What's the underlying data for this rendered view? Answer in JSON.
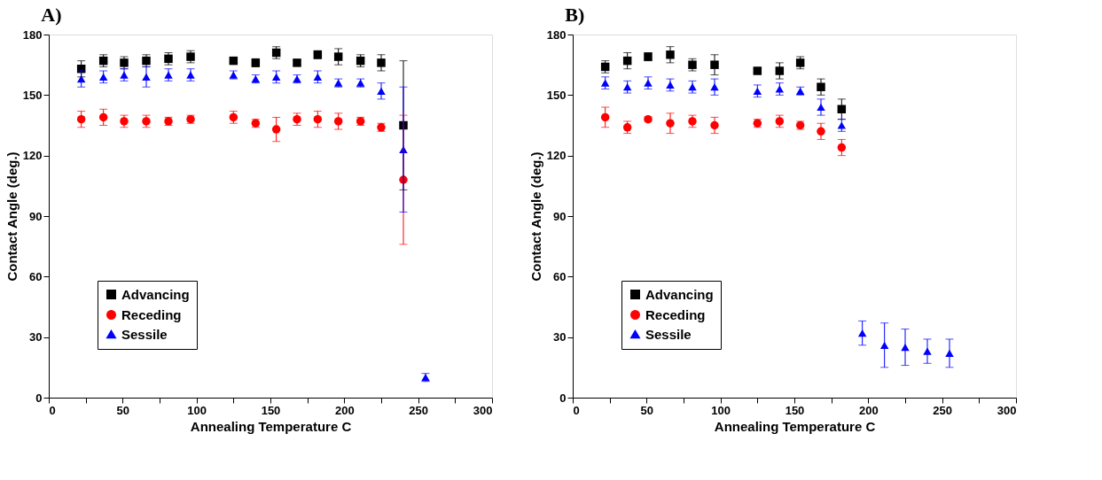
{
  "chart_data": [
    {
      "type": "scatter",
      "title": "A)",
      "xlabel": "Annealing Temperature C",
      "ylabel": "Contact Angle (deg.)",
      "xlim": [
        0,
        300
      ],
      "xticks": [
        0,
        {
          "value": 25,
          "label": null
        },
        50,
        {
          "value": 75,
          "label": null
        },
        100,
        {
          "value": 125,
          "label": null
        },
        150,
        {
          "value": 175,
          "label": null
        },
        200,
        {
          "value": 225,
          "label": null
        },
        250,
        {
          "value": 275,
          "label": null
        },
        300
      ],
      "ylim": [
        0,
        180
      ],
      "yticks": [
        0,
        30,
        60,
        90,
        120,
        150,
        180
      ],
      "grid": false,
      "legend": "bottom left",
      "series": [
        {
          "name": "Advancing",
          "color": "#000000",
          "marker": "square",
          "x": [
            22,
            37,
            51,
            66,
            81,
            96,
            125,
            140,
            154,
            168,
            182,
            196,
            211,
            225,
            240
          ],
          "values": [
            163,
            167,
            166,
            167,
            168,
            169,
            167,
            166,
            171,
            166,
            170,
            169,
            167,
            166,
            135
          ],
          "errors": [
            4,
            3,
            3,
            3,
            3,
            3,
            1,
            2,
            3,
            1,
            2,
            4,
            3,
            4,
            32
          ]
        },
        {
          "name": "Receding",
          "color": "#ff0000",
          "marker": "circle",
          "x": [
            22,
            37,
            51,
            66,
            81,
            96,
            125,
            140,
            154,
            168,
            182,
            196,
            211,
            225,
            240
          ],
          "values": [
            138,
            139,
            137,
            137,
            137,
            138,
            139,
            136,
            133,
            138,
            138,
            137,
            137,
            134,
            108
          ],
          "errors": [
            4,
            4,
            3,
            3,
            2,
            2,
            3,
            2,
            6,
            3,
            4,
            4,
            2,
            2,
            32
          ]
        },
        {
          "name": "Sessile",
          "color": "#0000ff",
          "marker": "triangle",
          "x": [
            22,
            37,
            51,
            66,
            81,
            96,
            125,
            140,
            154,
            168,
            182,
            196,
            211,
            225,
            240,
            255
          ],
          "values": [
            158,
            159,
            160,
            159,
            160,
            160,
            160,
            158,
            159,
            158,
            159,
            156,
            156,
            152,
            123,
            10
          ],
          "errors": [
            4,
            3,
            3,
            5,
            3,
            3,
            2,
            2,
            3,
            2,
            3,
            2,
            2,
            4,
            31,
            2
          ]
        }
      ]
    },
    {
      "type": "scatter",
      "title": "B)",
      "xlabel": "Annealing Temperature C",
      "ylabel": "Contact Angle (deg.)",
      "xlim": [
        0,
        300
      ],
      "xticks": [
        0,
        {
          "value": 25,
          "label": null
        },
        50,
        {
          "value": 75,
          "label": null
        },
        100,
        {
          "value": 125,
          "label": null
        },
        150,
        {
          "value": 175,
          "label": null
        },
        200,
        {
          "value": 225,
          "label": null
        },
        250,
        {
          "value": 275,
          "label": null
        },
        300
      ],
      "ylim": [
        0,
        180
      ],
      "yticks": [
        0,
        30,
        60,
        90,
        120,
        150,
        180
      ],
      "grid": false,
      "legend": "bottom left",
      "series": [
        {
          "name": "Advancing",
          "color": "#000000",
          "marker": "square",
          "x": [
            22,
            37,
            51,
            66,
            81,
            96,
            125,
            140,
            154,
            168,
            182
          ],
          "values": [
            164,
            167,
            169,
            170,
            165,
            165,
            162,
            162,
            166,
            154,
            143
          ],
          "errors": [
            3,
            4,
            2,
            4,
            3,
            5,
            1,
            4,
            3,
            4,
            5
          ]
        },
        {
          "name": "Receding",
          "color": "#ff0000",
          "marker": "circle",
          "x": [
            22,
            37,
            51,
            66,
            81,
            96,
            125,
            140,
            154,
            168,
            182
          ],
          "values": [
            139,
            134,
            138,
            136,
            137,
            135,
            136,
            137,
            135,
            132,
            124
          ],
          "errors": [
            5,
            3,
            1,
            5,
            3,
            4,
            2,
            3,
            2,
            4,
            4
          ]
        },
        {
          "name": "Sessile",
          "color": "#0000ff",
          "marker": "triangle",
          "x": [
            22,
            37,
            51,
            66,
            81,
            96,
            125,
            140,
            154,
            168,
            182,
            196,
            211,
            225,
            240,
            255
          ],
          "values": [
            156,
            154,
            156,
            155,
            154,
            154,
            152,
            153,
            152,
            144,
            135,
            32,
            26,
            25,
            23,
            22
          ],
          "errors": [
            3,
            3,
            3,
            3,
            3,
            4,
            3,
            3,
            2,
            4,
            3,
            6,
            11,
            9,
            6,
            7
          ]
        }
      ]
    }
  ]
}
